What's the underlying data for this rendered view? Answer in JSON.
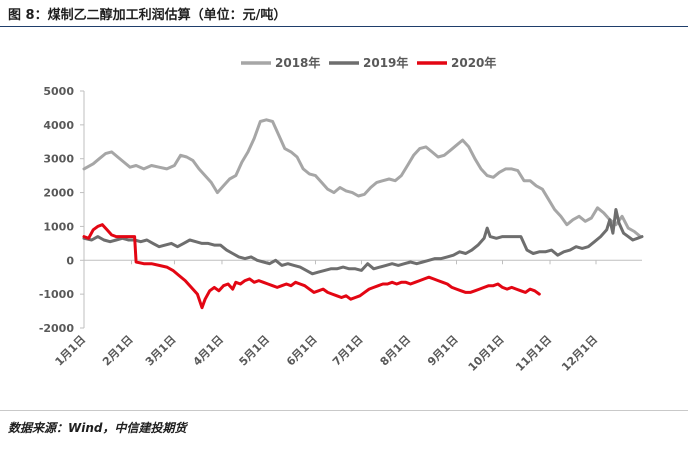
{
  "title": "图 8：煤制乙二醇加工利润估算（单位：元/吨）",
  "source": "数据来源：Wind，中信建投期货",
  "chart_data": {
    "type": "line",
    "title": "",
    "xlabel": "",
    "ylabel": "",
    "ylim": [
      -2000,
      5000
    ],
    "yticks": [
      -2000,
      -1000,
      0,
      1000,
      2000,
      3000,
      4000,
      5000
    ],
    "ytick_labels": [
      "-2000",
      "-1000",
      "0",
      "1000",
      "2000",
      "3000",
      "4000",
      "5000"
    ],
    "x_domain": [
      1,
      365
    ],
    "xticks": [
      {
        "label": "1月1日",
        "day": 1
      },
      {
        "label": "2月1日",
        "day": 32
      },
      {
        "label": "3月1日",
        "day": 60
      },
      {
        "label": "4月1日",
        "day": 91
      },
      {
        "label": "5月1日",
        "day": 121
      },
      {
        "label": "6月1日",
        "day": 152
      },
      {
        "label": "7月1日",
        "day": 182
      },
      {
        "label": "8月1日",
        "day": 213
      },
      {
        "label": "9月1日",
        "day": 244
      },
      {
        "label": "10月1日",
        "day": 274
      },
      {
        "label": "11月1日",
        "day": 305
      },
      {
        "label": "12月1日",
        "day": 335
      }
    ],
    "grid": false,
    "legend_position": "top-center",
    "series": [
      {
        "name": "2018年",
        "color": "#a6a6a6",
        "points": [
          [
            1,
            2700
          ],
          [
            7,
            2850
          ],
          [
            11,
            3000
          ],
          [
            15,
            3150
          ],
          [
            19,
            3200
          ],
          [
            23,
            3050
          ],
          [
            27,
            2900
          ],
          [
            31,
            2750
          ],
          [
            35,
            2800
          ],
          [
            40,
            2700
          ],
          [
            45,
            2800
          ],
          [
            50,
            2750
          ],
          [
            55,
            2700
          ],
          [
            60,
            2800
          ],
          [
            64,
            3100
          ],
          [
            68,
            3050
          ],
          [
            72,
            2950
          ],
          [
            76,
            2700
          ],
          [
            80,
            2500
          ],
          [
            84,
            2300
          ],
          [
            88,
            2000
          ],
          [
            92,
            2200
          ],
          [
            96,
            2400
          ],
          [
            100,
            2500
          ],
          [
            104,
            2900
          ],
          [
            108,
            3200
          ],
          [
            112,
            3600
          ],
          [
            116,
            4100
          ],
          [
            120,
            4150
          ],
          [
            124,
            4100
          ],
          [
            128,
            3700
          ],
          [
            132,
            3300
          ],
          [
            136,
            3200
          ],
          [
            140,
            3050
          ],
          [
            144,
            2700
          ],
          [
            148,
            2550
          ],
          [
            152,
            2500
          ],
          [
            156,
            2300
          ],
          [
            160,
            2100
          ],
          [
            164,
            2000
          ],
          [
            168,
            2150
          ],
          [
            172,
            2050
          ],
          [
            176,
            2000
          ],
          [
            180,
            1900
          ],
          [
            184,
            1950
          ],
          [
            188,
            2150
          ],
          [
            192,
            2300
          ],
          [
            196,
            2350
          ],
          [
            200,
            2400
          ],
          [
            204,
            2350
          ],
          [
            208,
            2500
          ],
          [
            212,
            2800
          ],
          [
            216,
            3100
          ],
          [
            220,
            3300
          ],
          [
            224,
            3350
          ],
          [
            228,
            3200
          ],
          [
            232,
            3050
          ],
          [
            236,
            3100
          ],
          [
            240,
            3250
          ],
          [
            244,
            3400
          ],
          [
            248,
            3550
          ],
          [
            252,
            3350
          ],
          [
            256,
            3000
          ],
          [
            260,
            2700
          ],
          [
            264,
            2500
          ],
          [
            268,
            2450
          ],
          [
            272,
            2600
          ],
          [
            276,
            2700
          ],
          [
            280,
            2700
          ],
          [
            284,
            2650
          ],
          [
            288,
            2350
          ],
          [
            292,
            2350
          ],
          [
            296,
            2200
          ],
          [
            300,
            2100
          ],
          [
            304,
            1800
          ],
          [
            308,
            1500
          ],
          [
            312,
            1300
          ],
          [
            316,
            1050
          ],
          [
            320,
            1200
          ],
          [
            324,
            1300
          ],
          [
            328,
            1150
          ],
          [
            332,
            1250
          ],
          [
            336,
            1550
          ],
          [
            340,
            1400
          ],
          [
            344,
            1200
          ],
          [
            348,
            1050
          ],
          [
            352,
            1300
          ],
          [
            356,
            950
          ],
          [
            360,
            850
          ],
          [
            364,
            700
          ]
        ]
      },
      {
        "name": "2019年",
        "color": "#6e6e6e",
        "points": [
          [
            1,
            650
          ],
          [
            6,
            600
          ],
          [
            10,
            700
          ],
          [
            14,
            600
          ],
          [
            18,
            550
          ],
          [
            22,
            600
          ],
          [
            26,
            650
          ],
          [
            30,
            600
          ],
          [
            34,
            600
          ],
          [
            38,
            550
          ],
          [
            42,
            600
          ],
          [
            46,
            500
          ],
          [
            50,
            400
          ],
          [
            54,
            450
          ],
          [
            58,
            500
          ],
          [
            62,
            400
          ],
          [
            66,
            500
          ],
          [
            70,
            600
          ],
          [
            74,
            550
          ],
          [
            78,
            500
          ],
          [
            82,
            500
          ],
          [
            86,
            450
          ],
          [
            90,
            450
          ],
          [
            94,
            300
          ],
          [
            98,
            200
          ],
          [
            102,
            100
          ],
          [
            106,
            50
          ],
          [
            110,
            100
          ],
          [
            114,
            0
          ],
          [
            118,
            -50
          ],
          [
            122,
            -100
          ],
          [
            126,
            0
          ],
          [
            130,
            -150
          ],
          [
            134,
            -100
          ],
          [
            138,
            -150
          ],
          [
            142,
            -200
          ],
          [
            146,
            -300
          ],
          [
            150,
            -400
          ],
          [
            154,
            -350
          ],
          [
            158,
            -300
          ],
          [
            162,
            -250
          ],
          [
            166,
            -250
          ],
          [
            170,
            -200
          ],
          [
            174,
            -250
          ],
          [
            178,
            -250
          ],
          [
            182,
            -300
          ],
          [
            186,
            -100
          ],
          [
            190,
            -250
          ],
          [
            194,
            -200
          ],
          [
            198,
            -150
          ],
          [
            202,
            -100
          ],
          [
            206,
            -150
          ],
          [
            210,
            -100
          ],
          [
            214,
            -50
          ],
          [
            218,
            -100
          ],
          [
            222,
            -50
          ],
          [
            226,
            0
          ],
          [
            230,
            50
          ],
          [
            234,
            50
          ],
          [
            238,
            100
          ],
          [
            242,
            150
          ],
          [
            246,
            250
          ],
          [
            250,
            200
          ],
          [
            254,
            300
          ],
          [
            258,
            450
          ],
          [
            262,
            650
          ],
          [
            264,
            950
          ],
          [
            266,
            700
          ],
          [
            270,
            650
          ],
          [
            274,
            700
          ],
          [
            278,
            700
          ],
          [
            282,
            700
          ],
          [
            286,
            700
          ],
          [
            290,
            300
          ],
          [
            294,
            200
          ],
          [
            298,
            250
          ],
          [
            302,
            250
          ],
          [
            306,
            300
          ],
          [
            310,
            150
          ],
          [
            314,
            250
          ],
          [
            318,
            300
          ],
          [
            322,
            400
          ],
          [
            326,
            350
          ],
          [
            330,
            400
          ],
          [
            334,
            550
          ],
          [
            338,
            700
          ],
          [
            342,
            900
          ],
          [
            344,
            1200
          ],
          [
            346,
            800
          ],
          [
            348,
            1500
          ],
          [
            350,
            1100
          ],
          [
            353,
            800
          ],
          [
            356,
            700
          ],
          [
            359,
            600
          ],
          [
            362,
            650
          ],
          [
            365,
            700
          ]
        ]
      },
      {
        "name": "2020年",
        "color": "#e30613",
        "points": [
          [
            1,
            700
          ],
          [
            4,
            650
          ],
          [
            7,
            900
          ],
          [
            10,
            1000
          ],
          [
            13,
            1050
          ],
          [
            16,
            900
          ],
          [
            19,
            750
          ],
          [
            22,
            700
          ],
          [
            26,
            700
          ],
          [
            30,
            700
          ],
          [
            34,
            700
          ],
          [
            35,
            -50
          ],
          [
            40,
            -100
          ],
          [
            45,
            -100
          ],
          [
            50,
            -150
          ],
          [
            55,
            -200
          ],
          [
            59,
            -300
          ],
          [
            63,
            -450
          ],
          [
            67,
            -600
          ],
          [
            71,
            -800
          ],
          [
            75,
            -1000
          ],
          [
            78,
            -1400
          ],
          [
            80,
            -1150
          ],
          [
            83,
            -900
          ],
          [
            86,
            -800
          ],
          [
            89,
            -900
          ],
          [
            92,
            -750
          ],
          [
            95,
            -700
          ],
          [
            98,
            -850
          ],
          [
            100,
            -650
          ],
          [
            103,
            -700
          ],
          [
            106,
            -600
          ],
          [
            109,
            -550
          ],
          [
            112,
            -650
          ],
          [
            115,
            -600
          ],
          [
            118,
            -650
          ],
          [
            121,
            -700
          ],
          [
            124,
            -750
          ],
          [
            127,
            -800
          ],
          [
            130,
            -750
          ],
          [
            133,
            -700
          ],
          [
            136,
            -750
          ],
          [
            139,
            -650
          ],
          [
            142,
            -700
          ],
          [
            145,
            -750
          ],
          [
            148,
            -850
          ],
          [
            151,
            -950
          ],
          [
            154,
            -900
          ],
          [
            157,
            -850
          ],
          [
            160,
            -950
          ],
          [
            163,
            -1000
          ],
          [
            166,
            -1050
          ],
          [
            169,
            -1100
          ],
          [
            172,
            -1050
          ],
          [
            175,
            -1150
          ],
          [
            178,
            -1100
          ],
          [
            181,
            -1050
          ],
          [
            184,
            -950
          ],
          [
            187,
            -850
          ],
          [
            190,
            -800
          ],
          [
            193,
            -750
          ],
          [
            196,
            -700
          ],
          [
            199,
            -700
          ],
          [
            202,
            -650
          ],
          [
            205,
            -700
          ],
          [
            208,
            -650
          ],
          [
            211,
            -650
          ],
          [
            214,
            -700
          ],
          [
            217,
            -650
          ],
          [
            220,
            -600
          ],
          [
            223,
            -550
          ],
          [
            226,
            -500
          ],
          [
            229,
            -550
          ],
          [
            232,
            -600
          ],
          [
            235,
            -650
          ],
          [
            238,
            -700
          ],
          [
            241,
            -800
          ],
          [
            244,
            -850
          ],
          [
            247,
            -900
          ],
          [
            250,
            -950
          ],
          [
            253,
            -950
          ],
          [
            256,
            -900
          ],
          [
            259,
            -850
          ],
          [
            262,
            -800
          ],
          [
            265,
            -750
          ],
          [
            268,
            -750
          ],
          [
            271,
            -700
          ],
          [
            274,
            -800
          ],
          [
            277,
            -850
          ],
          [
            280,
            -800
          ],
          [
            283,
            -850
          ],
          [
            286,
            -900
          ],
          [
            289,
            -950
          ],
          [
            292,
            -850
          ],
          [
            295,
            -900
          ],
          [
            298,
            -1000
          ]
        ]
      }
    ]
  }
}
